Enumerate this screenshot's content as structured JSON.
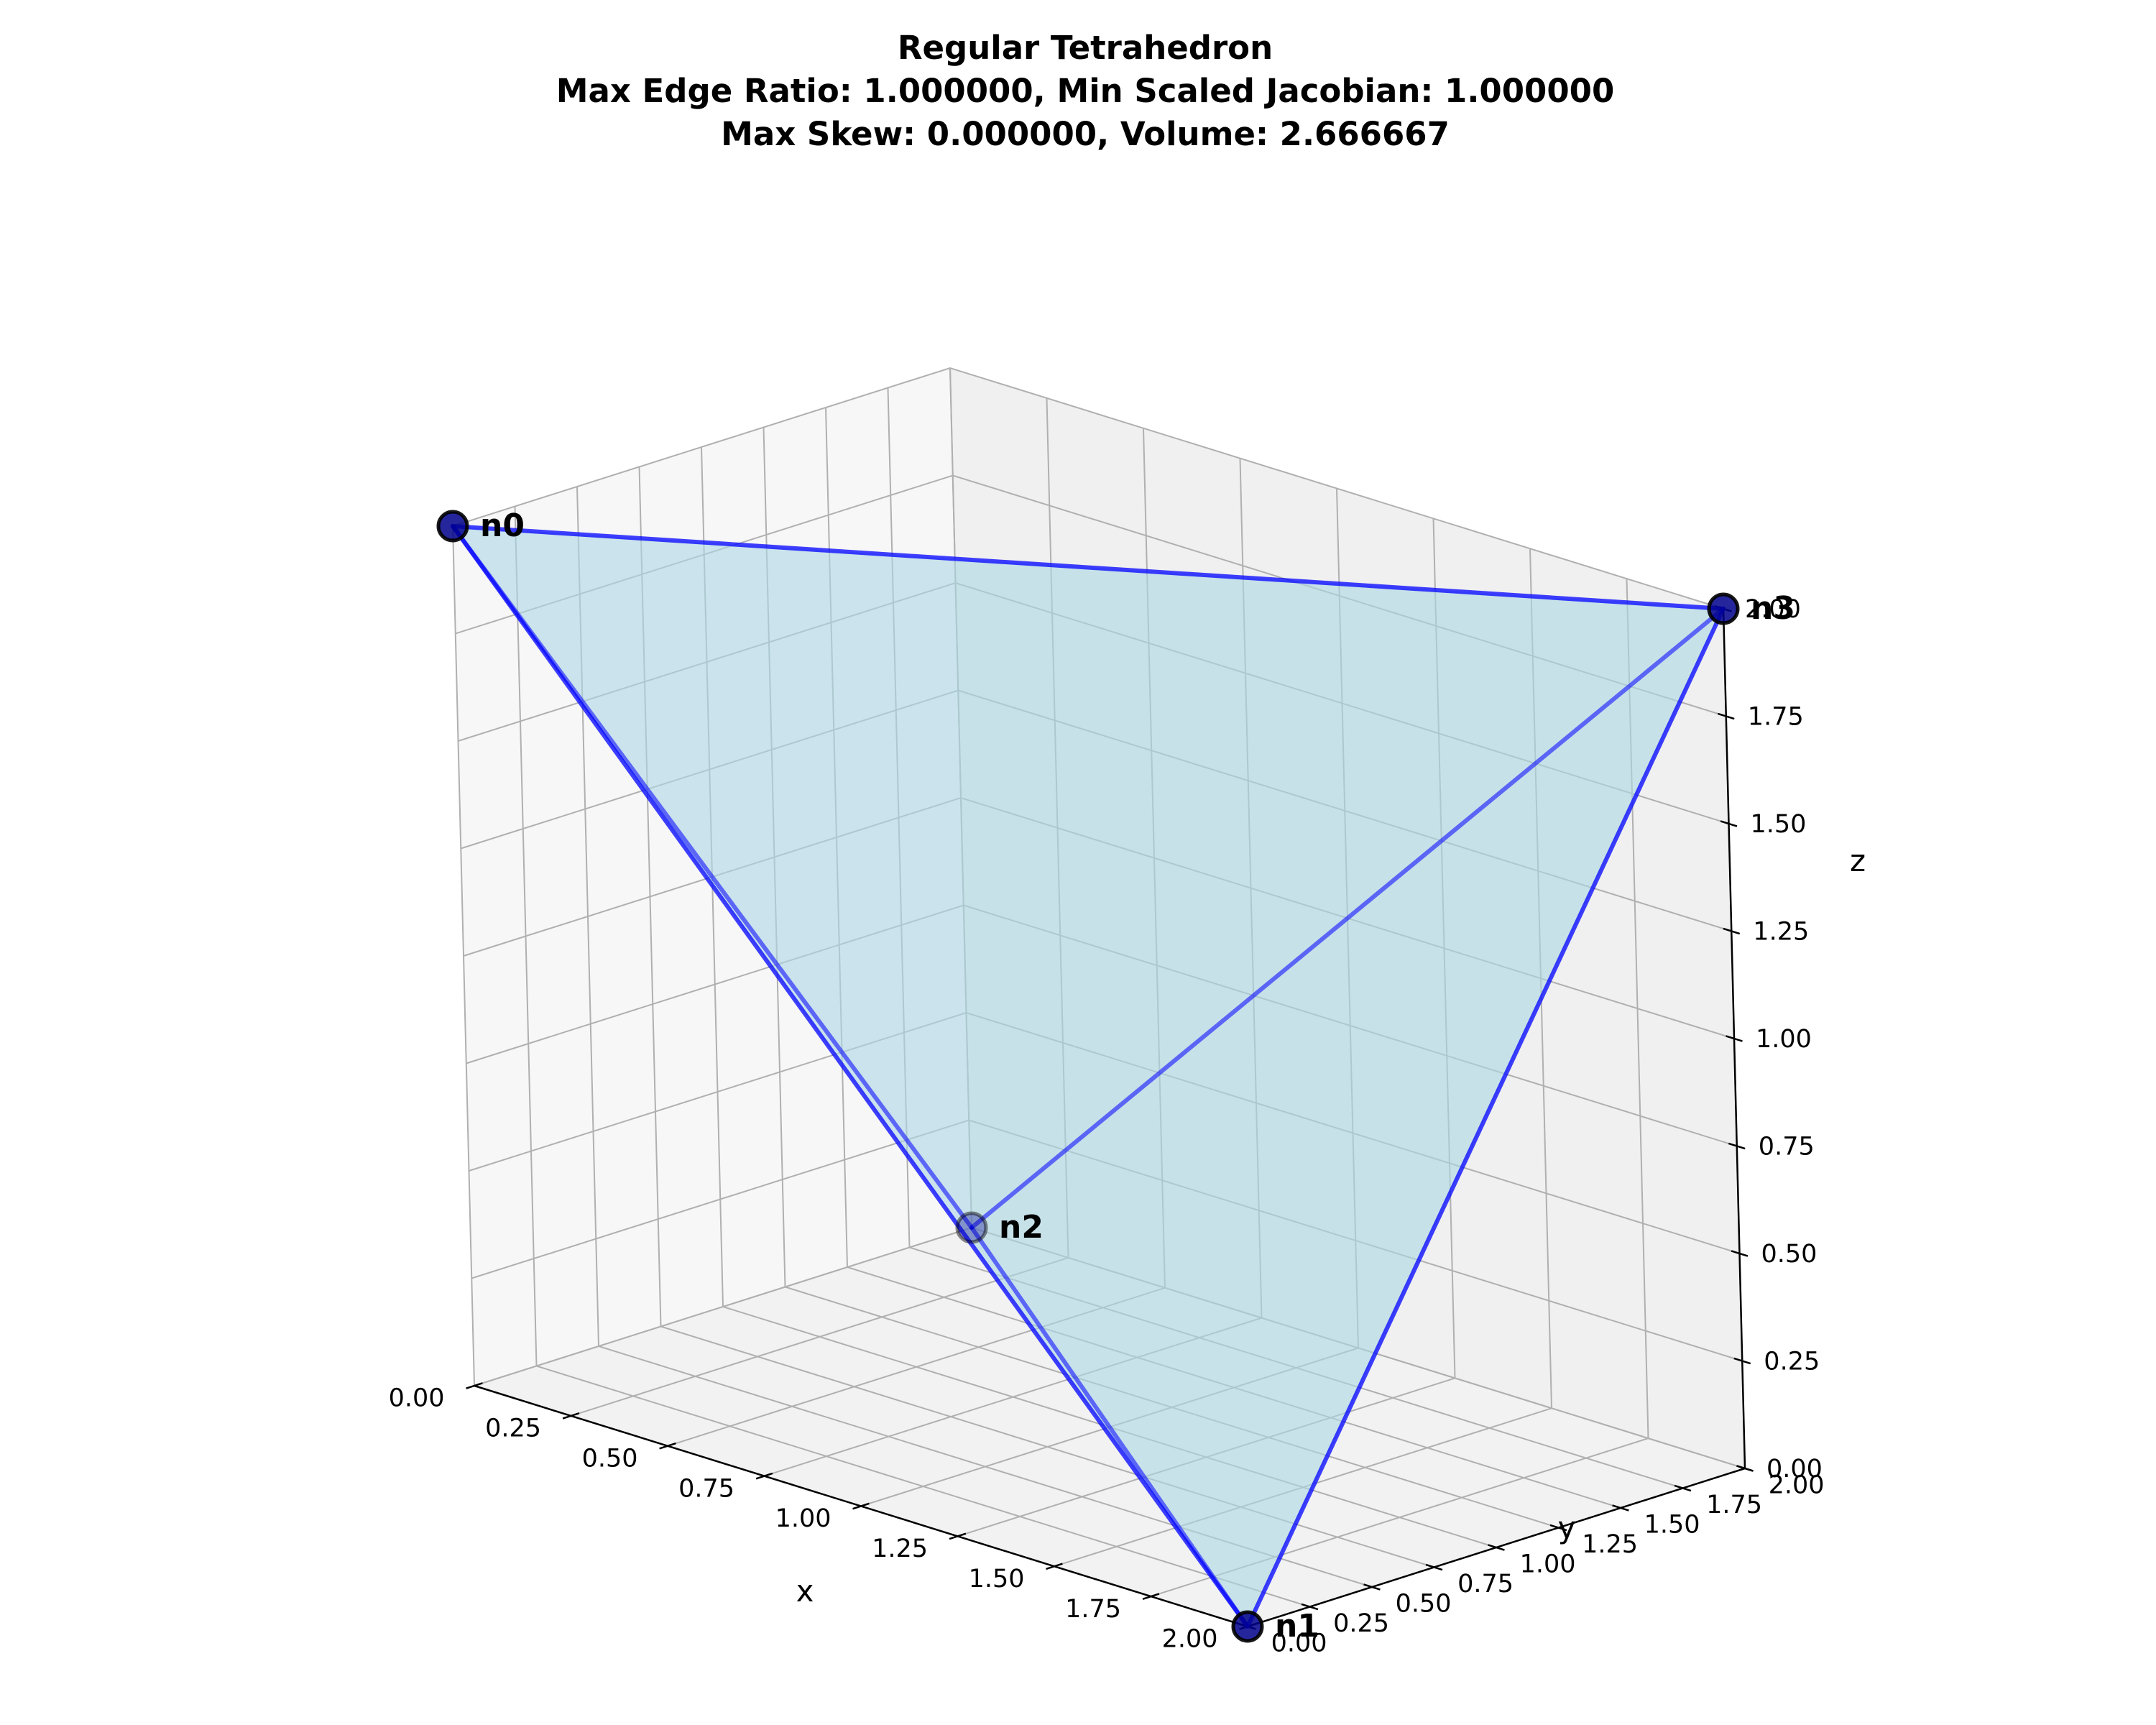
{
  "chart_data": {
    "type": "3d-mesh",
    "title": {
      "line1": "Regular Tetrahedron",
      "line2": "Max Edge Ratio: 1.000000, Min Scaled Jacobian: 1.000000",
      "line3": "Max Skew: 0.000000, Volume: 2.666667"
    },
    "xlabel": "x",
    "ylabel": "y",
    "zlabel": "z",
    "xlim": [
      0,
      2
    ],
    "ylim": [
      0,
      2
    ],
    "zlim": [
      0,
      2
    ],
    "ticks": [
      0.0,
      0.25,
      0.5,
      0.75,
      1.0,
      1.25,
      1.5,
      1.75,
      2.0
    ],
    "tick_labels": [
      "0.00",
      "0.25",
      "0.50",
      "0.75",
      "1.00",
      "1.25",
      "1.50",
      "1.75",
      "2.00"
    ],
    "grid": true,
    "nodes": [
      {
        "name": "n0",
        "x": 0,
        "y": 0,
        "z": 2
      },
      {
        "name": "n1",
        "x": 2,
        "y": 0,
        "z": 0
      },
      {
        "name": "n2",
        "x": 0,
        "y": 2,
        "z": 0
      },
      {
        "name": "n3",
        "x": 2,
        "y": 2,
        "z": 2
      }
    ],
    "edges": [
      [
        0,
        1
      ],
      [
        0,
        2
      ],
      [
        0,
        3
      ],
      [
        1,
        2
      ],
      [
        1,
        3
      ],
      [
        2,
        3
      ]
    ],
    "colors": {
      "face": "#add8e6",
      "edge": "#0000ff",
      "node": "#00008b",
      "node_outline": "#000000"
    }
  }
}
